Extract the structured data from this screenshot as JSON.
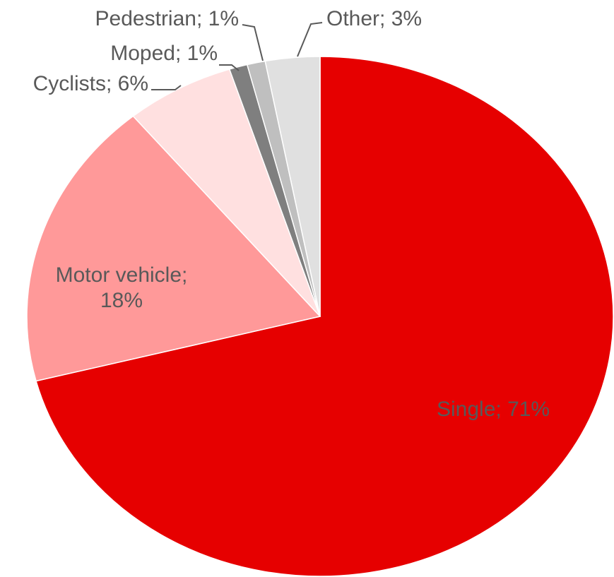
{
  "chart_data": {
    "type": "pie",
    "values": [
      71,
      18,
      6,
      1,
      1,
      3
    ],
    "value_labels": [
      "Single; 71%",
      "Motor vehicle; 18%",
      "Cyclists; 6%",
      "Moped; 1%",
      "Pedestrian; 1%",
      "Other; 3%"
    ],
    "colors": [
      "#e60000",
      "#ff9999",
      "#ffe0e0",
      "#7f7f7f",
      "#bfbfbf",
      "#e0e0e0"
    ]
  }
}
